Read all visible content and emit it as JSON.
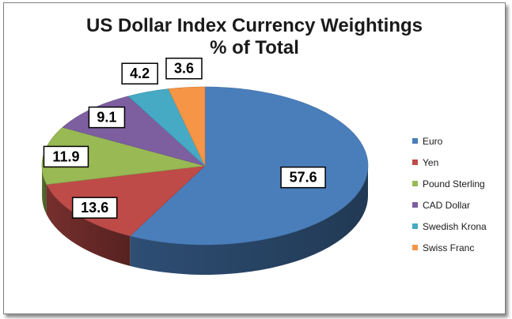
{
  "chart_data": {
    "type": "pie",
    "title": "US Dollar Index Currency Weightings",
    "subtitle": "% of Total",
    "legend_position": "right",
    "slices": [
      {
        "label": "Euro",
        "value": 57.6,
        "color": "#4a7ebb"
      },
      {
        "label": "Yen",
        "value": 13.6,
        "color": "#be4b48"
      },
      {
        "label": "Pound Sterling",
        "value": 11.9,
        "color": "#98b954"
      },
      {
        "label": "CAD Dollar",
        "value": 9.1,
        "color": "#7d5fa0"
      },
      {
        "label": "Swedish Krona",
        "value": 4.2,
        "color": "#46aac5"
      },
      {
        "label": "Swiss Franc",
        "value": 3.6,
        "color": "#f69546"
      }
    ]
  }
}
